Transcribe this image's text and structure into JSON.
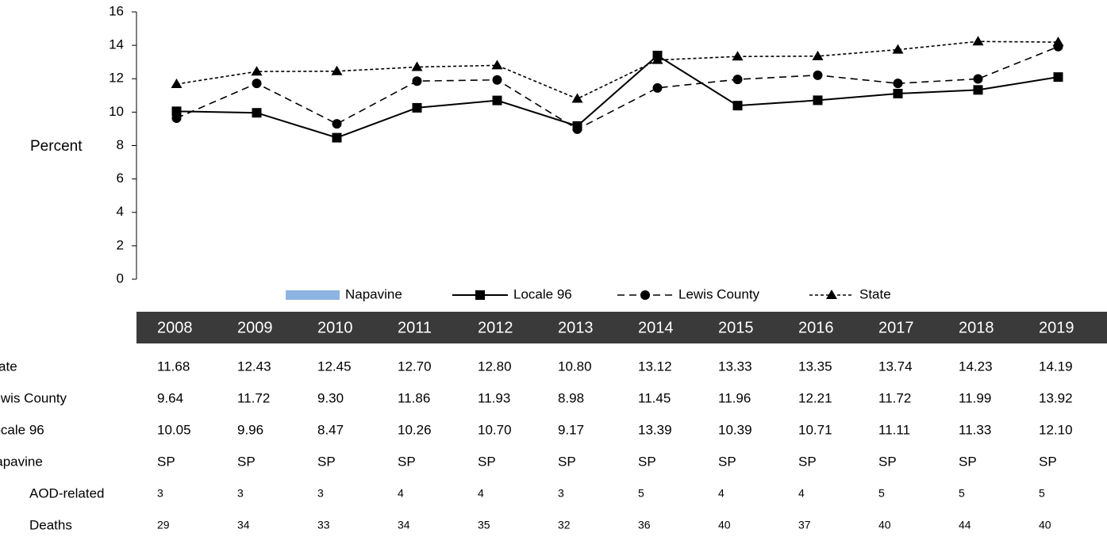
{
  "chart_data": {
    "type": "line",
    "y_label": "Percent",
    "categories": [
      "2008",
      "2009",
      "2010",
      "2011",
      "2012",
      "2013",
      "2014",
      "2015",
      "2016",
      "2017",
      "2018",
      "2019"
    ],
    "ylim": [
      0,
      16
    ],
    "yticks": [
      0,
      2,
      4,
      6,
      8,
      10,
      12,
      14,
      16
    ],
    "series": [
      {
        "name": "Napavine",
        "kind": "bar",
        "color": "#8db3e2",
        "values": [
          null,
          null,
          null,
          null,
          null,
          null,
          null,
          null,
          null,
          null,
          null,
          null
        ],
        "value_labels": [
          "SP",
          "SP",
          "SP",
          "SP",
          "SP",
          "SP",
          "SP",
          "SP",
          "SP",
          "SP",
          "SP",
          "SP"
        ]
      },
      {
        "name": "Locale 96",
        "kind": "line",
        "color": "#000000",
        "dash": "solid",
        "marker": "square",
        "values": [
          10.05,
          9.96,
          8.47,
          10.26,
          10.7,
          9.17,
          13.39,
          10.39,
          10.71,
          11.11,
          11.33,
          12.1
        ],
        "value_labels": [
          "10.05",
          "9.96",
          "8.47",
          "10.26",
          "10.70",
          "9.17",
          "13.39",
          "10.39",
          "10.71",
          "11.11",
          "11.33",
          "12.10"
        ]
      },
      {
        "name": "Lewis County",
        "kind": "line",
        "color": "#000000",
        "dash": "dashed",
        "marker": "circle",
        "values": [
          9.64,
          11.72,
          9.3,
          11.86,
          11.93,
          8.98,
          11.45,
          11.96,
          12.21,
          11.72,
          11.99,
          13.92
        ],
        "value_labels": [
          "9.64",
          "11.72",
          "9.30",
          "11.86",
          "11.93",
          "8.98",
          "11.45",
          "11.96",
          "12.21",
          "11.72",
          "11.99",
          "13.92"
        ]
      },
      {
        "name": "State",
        "kind": "line",
        "color": "#000000",
        "dash": "dotted",
        "marker": "triangle",
        "values": [
          11.68,
          12.43,
          12.45,
          12.7,
          12.8,
          10.8,
          13.12,
          13.33,
          13.35,
          13.74,
          14.23,
          14.19
        ],
        "value_labels": [
          "11.68",
          "12.43",
          "12.45",
          "12.70",
          "12.80",
          "10.80",
          "13.12",
          "13.33",
          "13.35",
          "13.74",
          "14.23",
          "14.19"
        ]
      }
    ],
    "extra_rows": [
      {
        "name": "AOD-related",
        "values": [
          3,
          3,
          3,
          4,
          4,
          3,
          5,
          4,
          4,
          5,
          5,
          5
        ]
      },
      {
        "name": "Deaths",
        "values": [
          29,
          34,
          33,
          34,
          35,
          32,
          36,
          40,
          37,
          40,
          44,
          40
        ]
      }
    ]
  }
}
